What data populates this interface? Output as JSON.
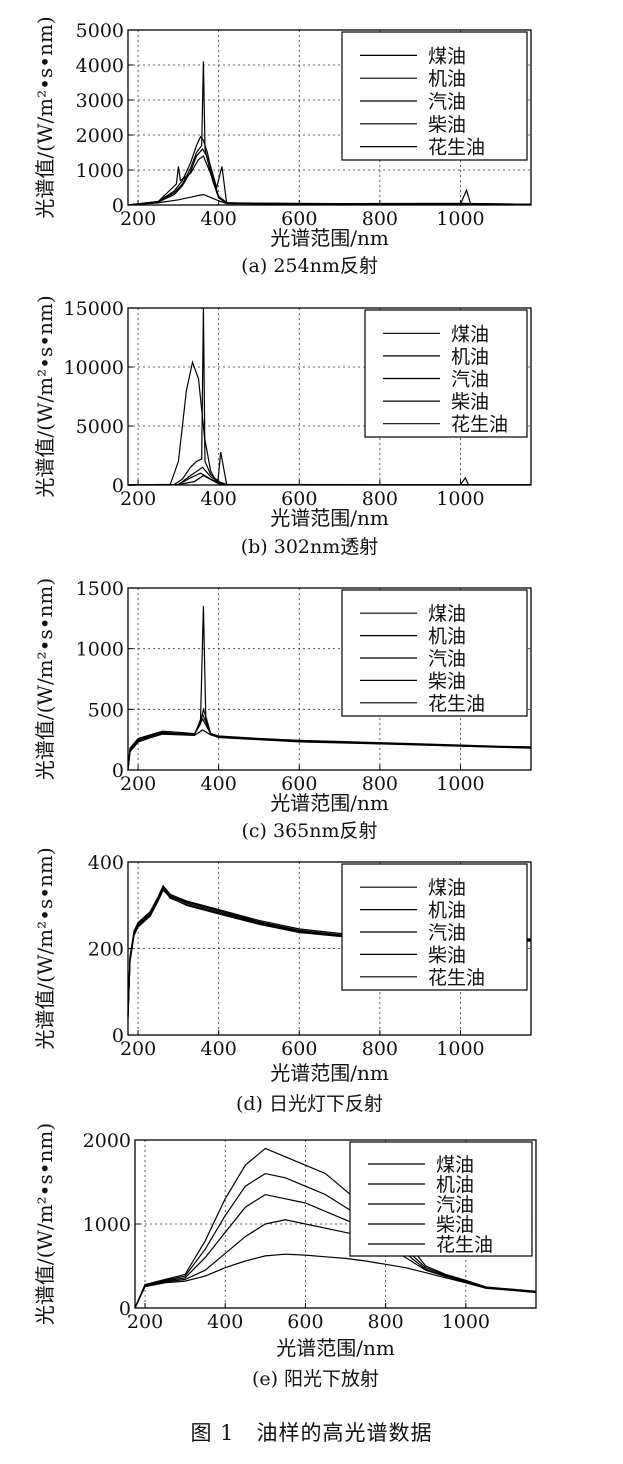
{
  "figure_caption": "图 1　油样的高光谱数据",
  "chart_data": [
    {
      "type": "line",
      "caption": "(a) 254nm反射",
      "xlabel": "光谱范围/nm",
      "ylabel": "光谱值/(W/m²•s•nm)",
      "xlim": [
        175,
        1175
      ],
      "ylim": [
        0,
        5000
      ],
      "xticks": [
        200,
        400,
        600,
        800,
        1000
      ],
      "yticks": [
        0,
        1000,
        2000,
        3000,
        4000,
        5000
      ],
      "grid": true,
      "legend_position": "top-right",
      "series": [
        {
          "name": "煤油",
          "x": [
            175,
            250,
            290,
            310,
            330,
            345,
            355,
            362,
            372,
            385,
            400,
            420,
            500,
            700,
            900,
            1000,
            1015,
            1025,
            1175
          ],
          "y": [
            0,
            100,
            400,
            700,
            1200,
            1700,
            1950,
            1850,
            1500,
            800,
            250,
            70,
            30,
            40,
            30,
            30,
            420,
            40,
            20
          ]
        },
        {
          "name": "机油",
          "x": [
            175,
            250,
            290,
            310,
            330,
            345,
            358,
            362,
            366,
            372,
            385,
            400,
            420,
            700,
            1000,
            1175
          ],
          "y": [
            0,
            90,
            350,
            600,
            1050,
            1500,
            1700,
            4100,
            1600,
            1300,
            700,
            200,
            60,
            40,
            50,
            20
          ]
        },
        {
          "name": "汽油",
          "x": [
            175,
            250,
            290,
            310,
            330,
            345,
            360,
            375,
            395,
            408,
            420,
            700,
            1000,
            1175
          ],
          "y": [
            0,
            80,
            300,
            550,
            950,
            1400,
            1600,
            1300,
            500,
            1100,
            50,
            30,
            30,
            20
          ]
        },
        {
          "name": "柴油",
          "x": [
            175,
            250,
            295,
            300,
            305,
            330,
            350,
            362,
            380,
            400,
            420,
            700,
            1000,
            1175
          ],
          "y": [
            0,
            100,
            600,
            1100,
            700,
            900,
            1300,
            1400,
            900,
            200,
            50,
            30,
            30,
            20
          ]
        },
        {
          "name": "花生油",
          "x": [
            175,
            250,
            300,
            340,
            362,
            400,
            420,
            700,
            1000,
            1175
          ],
          "y": [
            0,
            60,
            150,
            250,
            300,
            120,
            40,
            20,
            25,
            15
          ]
        }
      ]
    },
    {
      "type": "line",
      "caption": "(b) 302nm透射",
      "xlabel": "光谱范围/nm",
      "ylabel": "光谱值/(W/m²•s•nm)",
      "xlim": [
        175,
        1175
      ],
      "ylim": [
        0,
        15000
      ],
      "xticks": [
        200,
        400,
        600,
        800,
        1000
      ],
      "yticks": [
        0,
        5000,
        10000,
        15000
      ],
      "grid": true,
      "legend_position": "top-right",
      "series": [
        {
          "name": "煤油",
          "x": [
            175,
            280,
            300,
            320,
            335,
            350,
            365,
            380,
            395,
            420,
            1000,
            1012,
            1020,
            1175
          ],
          "y": [
            0,
            50,
            2000,
            8000,
            10400,
            9000,
            4000,
            1200,
            200,
            40,
            30,
            600,
            30,
            20
          ]
        },
        {
          "name": "机油",
          "x": [
            175,
            290,
            310,
            330,
            345,
            358,
            362,
            366,
            380,
            400,
            420,
            1175
          ],
          "y": [
            0,
            40,
            500,
            1500,
            2000,
            2200,
            15000,
            2000,
            900,
            300,
            30,
            20
          ]
        },
        {
          "name": "汽油",
          "x": [
            175,
            300,
            330,
            360,
            380,
            398,
            405,
            420,
            1175
          ],
          "y": [
            0,
            40,
            800,
            1500,
            700,
            300,
            2800,
            30,
            20
          ]
        },
        {
          "name": "柴油",
          "x": [
            175,
            300,
            330,
            355,
            375,
            400,
            420,
            1175
          ],
          "y": [
            0,
            40,
            600,
            1000,
            600,
            150,
            30,
            20
          ]
        },
        {
          "name": "花生油",
          "x": [
            175,
            300,
            340,
            362,
            400,
            420,
            1175
          ],
          "y": [
            0,
            30,
            300,
            800,
            100,
            20,
            15
          ]
        }
      ]
    },
    {
      "type": "line",
      "caption": "(c) 365nm反射",
      "xlabel": "光谱范围/nm",
      "ylabel": "光谱值/(W/m²•s•nm)",
      "xlim": [
        175,
        1175
      ],
      "ylim": [
        0,
        1500
      ],
      "xticks": [
        200,
        400,
        600,
        800,
        1000
      ],
      "yticks": [
        0,
        500,
        1000,
        1500
      ],
      "grid": true,
      "legend_position": "top-right",
      "series": [
        {
          "name": "煤油",
          "x": [
            175,
            180,
            200,
            230,
            260,
            300,
            340,
            355,
            362,
            368,
            380,
            400,
            500,
            600,
            700,
            800,
            900,
            1000,
            1100,
            1175
          ],
          "y": [
            0,
            180,
            260,
            290,
            320,
            310,
            300,
            400,
            1350,
            420,
            300,
            280,
            260,
            245,
            235,
            225,
            215,
            205,
            195,
            190
          ]
        },
        {
          "name": "机油",
          "x": [
            175,
            180,
            200,
            230,
            260,
            300,
            340,
            355,
            362,
            370,
            380,
            400,
            600,
            800,
            1000,
            1175
          ],
          "y": [
            0,
            170,
            250,
            280,
            310,
            300,
            295,
            380,
            500,
            420,
            300,
            275,
            240,
            220,
            200,
            185
          ]
        },
        {
          "name": "汽油",
          "x": [
            175,
            180,
            200,
            230,
            260,
            300,
            340,
            360,
            380,
            400,
            600,
            800,
            1000,
            1175
          ],
          "y": [
            0,
            160,
            240,
            275,
            300,
            295,
            290,
            460,
            300,
            270,
            235,
            218,
            198,
            182
          ]
        },
        {
          "name": "柴油",
          "x": [
            175,
            180,
            200,
            230,
            260,
            300,
            340,
            360,
            380,
            400,
            600,
            800,
            1000,
            1175
          ],
          "y": [
            0,
            165,
            245,
            280,
            305,
            298,
            292,
            420,
            300,
            272,
            238,
            220,
            200,
            185
          ]
        },
        {
          "name": "花生油",
          "x": [
            175,
            180,
            200,
            230,
            260,
            300,
            340,
            360,
            380,
            400,
            600,
            800,
            1000,
            1175
          ],
          "y": [
            0,
            150,
            230,
            265,
            295,
            290,
            285,
            330,
            290,
            268,
            232,
            215,
            196,
            180
          ]
        }
      ]
    },
    {
      "type": "line",
      "caption": "(d) 日光灯下反射",
      "xlabel": "光谱范围/nm",
      "ylabel": "光谱值/(W/m²•s•nm)",
      "xlim": [
        175,
        1175
      ],
      "ylim": [
        0,
        400
      ],
      "xticks": [
        200,
        400,
        600,
        800,
        1000
      ],
      "yticks": [
        0,
        200,
        400
      ],
      "grid": true,
      "legend_position": "top-right",
      "series": [
        {
          "name": "煤油",
          "x": [
            175,
            180,
            190,
            200,
            230,
            250,
            262,
            280,
            320,
            400,
            500,
            600,
            700,
            800,
            900,
            1000,
            1100,
            1175
          ],
          "y": [
            50,
            180,
            240,
            260,
            285,
            320,
            345,
            325,
            310,
            290,
            265,
            245,
            235,
            230,
            228,
            225,
            225,
            222
          ]
        },
        {
          "name": "机油",
          "x": [
            175,
            180,
            190,
            200,
            230,
            250,
            262,
            280,
            320,
            400,
            500,
            600,
            700,
            800,
            900,
            1000,
            1100,
            1175
          ],
          "y": [
            45,
            175,
            235,
            255,
            280,
            315,
            340,
            320,
            305,
            285,
            260,
            240,
            230,
            226,
            224,
            222,
            221,
            219
          ]
        },
        {
          "name": "汽油",
          "x": [
            175,
            180,
            190,
            200,
            230,
            250,
            262,
            280,
            320,
            400,
            500,
            600,
            700,
            800,
            900,
            1000,
            1100,
            1175
          ],
          "y": [
            40,
            170,
            230,
            250,
            275,
            310,
            335,
            318,
            300,
            280,
            256,
            237,
            228,
            224,
            222,
            220,
            219,
            217
          ]
        },
        {
          "name": "柴油",
          "x": [
            175,
            180,
            190,
            200,
            230,
            250,
            262,
            280,
            320,
            400,
            500,
            600,
            700,
            800,
            900,
            1000,
            1100,
            1175
          ],
          "y": [
            48,
            178,
            238,
            258,
            282,
            318,
            342,
            322,
            308,
            288,
            262,
            242,
            232,
            228,
            226,
            224,
            223,
            221
          ]
        },
        {
          "name": "花生油",
          "x": [
            175,
            180,
            190,
            200,
            230,
            250,
            262,
            280,
            320,
            400,
            500,
            600,
            700,
            800,
            900,
            1000,
            1100,
            1175
          ],
          "y": [
            42,
            172,
            232,
            252,
            278,
            312,
            338,
            316,
            302,
            282,
            258,
            238,
            229,
            225,
            223,
            221,
            220,
            218
          ]
        }
      ]
    },
    {
      "type": "line",
      "caption": "(e) 阳光下放射",
      "xlabel": "光谱范围/nm",
      "ylabel": "光谱值/(W/m²•s•nm)",
      "xlim": [
        175,
        1175
      ],
      "ylim": [
        0,
        2000
      ],
      "xticks": [
        200,
        400,
        600,
        800,
        1000
      ],
      "yticks": [
        0,
        1000,
        2000
      ],
      "grid": true,
      "legend_position": "top-right",
      "series": [
        {
          "name": "煤油",
          "x": [
            175,
            200,
            250,
            300,
            350,
            400,
            450,
            500,
            550,
            600,
            650,
            700,
            750,
            800,
            850,
            900,
            950,
            1000,
            1050,
            1100,
            1175
          ],
          "y": [
            0,
            280,
            340,
            400,
            800,
            1300,
            1700,
            1900,
            1800,
            1700,
            1600,
            1400,
            1200,
            1000,
            800,
            500,
            400,
            330,
            250,
            230,
            200
          ]
        },
        {
          "name": "机油",
          "x": [
            175,
            200,
            250,
            300,
            350,
            400,
            450,
            500,
            550,
            600,
            650,
            700,
            750,
            800,
            850,
            900,
            950,
            1000,
            1050,
            1100,
            1175
          ],
          "y": [
            0,
            270,
            330,
            380,
            700,
            1100,
            1450,
            1600,
            1550,
            1450,
            1350,
            1200,
            1050,
            900,
            700,
            480,
            390,
            320,
            245,
            225,
            195
          ]
        },
        {
          "name": "汽油",
          "x": [
            175,
            200,
            250,
            300,
            350,
            400,
            450,
            500,
            550,
            600,
            650,
            700,
            750,
            800,
            850,
            900,
            950,
            1000,
            1050,
            1100,
            1175
          ],
          "y": [
            0,
            265,
            320,
            360,
            600,
            900,
            1200,
            1350,
            1300,
            1250,
            1150,
            1050,
            950,
            820,
            650,
            460,
            380,
            315,
            240,
            220,
            190
          ]
        },
        {
          "name": "柴油",
          "x": [
            175,
            200,
            250,
            300,
            350,
            400,
            450,
            500,
            550,
            600,
            650,
            700,
            750,
            800,
            850,
            900,
            950,
            1000,
            1050,
            1100,
            1175
          ],
          "y": [
            0,
            260,
            310,
            340,
            450,
            650,
            850,
            1000,
            1050,
            1000,
            950,
            900,
            850,
            750,
            600,
            450,
            375,
            310,
            238,
            218,
            188
          ]
        },
        {
          "name": "花生油",
          "x": [
            175,
            200,
            250,
            300,
            350,
            400,
            450,
            500,
            550,
            600,
            650,
            700,
            750,
            800,
            850,
            900,
            950,
            1000,
            1050,
            1100,
            1175
          ],
          "y": [
            0,
            255,
            300,
            320,
            380,
            480,
            560,
            620,
            640,
            630,
            610,
            590,
            560,
            520,
            480,
            420,
            360,
            300,
            235,
            215,
            185
          ]
        }
      ]
    }
  ]
}
